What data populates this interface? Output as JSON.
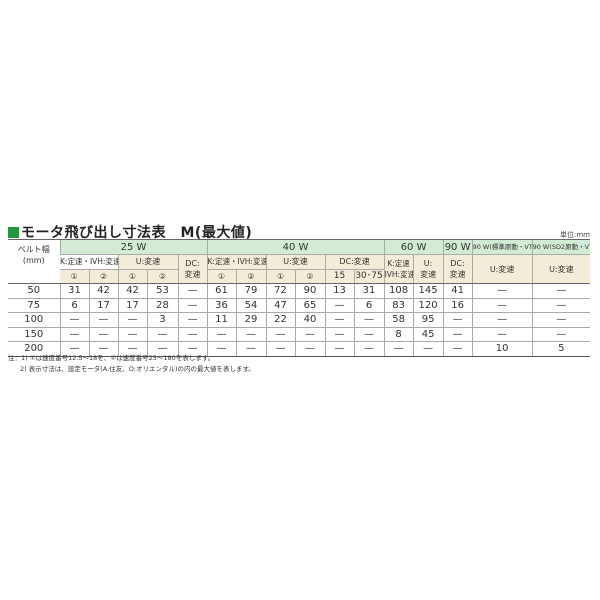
{
  "title": "モータ飛び出し寸法表　M(最大値)",
  "unit": "単位:mm",
  "headers": {
    "belt": "ベルト幅",
    "belt_unit": "(mm)",
    "w25": "25 W",
    "w40": "40 W",
    "w60": "60 W",
    "w90": "90 W",
    "w90std": "90 W(標準原動・VT)",
    "w90sd2": "90 W(SD2原動・VT)",
    "k_ivh": "K:定速・IVH:変速",
    "u": "U:変速",
    "dc": "DC:変速",
    "dc_short": "DC:",
    "hensoku": "変速",
    "k_short": "K:定速",
    "ivh_short": "IVH:変速",
    "u_short": "U:",
    "c1": "①",
    "c2": "②",
    "dc15": "15",
    "dc3075": "30･75"
  },
  "rows": [
    [
      "50",
      "31",
      "42",
      "42",
      "53",
      "—",
      "61",
      "79",
      "72",
      "90",
      "13",
      "31",
      "108",
      "145",
      "41",
      "—",
      "—"
    ],
    [
      "75",
      "6",
      "17",
      "17",
      "28",
      "—",
      "36",
      "54",
      "47",
      "65",
      "—",
      "6",
      "83",
      "120",
      "16",
      "—",
      "—"
    ],
    [
      "100",
      "—",
      "—",
      "—",
      "3",
      "—",
      "11",
      "29",
      "22",
      "40",
      "—",
      "—",
      "58",
      "95",
      "—",
      "—",
      "—"
    ],
    [
      "150",
      "—",
      "—",
      "—",
      "—",
      "—",
      "—",
      "—",
      "—",
      "—",
      "—",
      "—",
      "8",
      "45",
      "—",
      "—",
      "—"
    ],
    [
      "200",
      "—",
      "—",
      "—",
      "—",
      "—",
      "—",
      "—",
      "—",
      "—",
      "—",
      "—",
      "—",
      "—",
      "—",
      "10",
      "5"
    ]
  ],
  "notes": [
    "注：1) ①は速度番号12.5～18を、②は速度番号25～180を表します。",
    "2) 表示寸法は、設定モータ(A:住友、O:オリエンタル)の内の最大値を表します。"
  ],
  "colors": {
    "header_green": "#d3ebd5",
    "header_beige": "#f2ecd9",
    "title_square": "#1e9a3c"
  }
}
